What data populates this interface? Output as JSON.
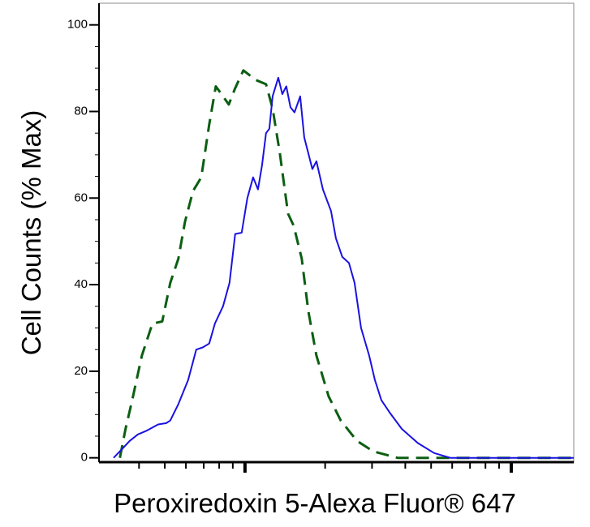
{
  "chart_data": {
    "type": "line",
    "x_label": "Peroxiredoxin 5-Alexa Fluor® 647",
    "y_label": "Cell Counts (% Max)",
    "x_scale": "log",
    "xlim": [
      28.3,
      1717
    ],
    "xticks": [
      100,
      1000
    ],
    "xminor_ticks": [
      40,
      50,
      60,
      70,
      80,
      90,
      200,
      300,
      400,
      500,
      600,
      700,
      800,
      900
    ],
    "x_tick_labels": false,
    "ylim": [
      -1,
      105
    ],
    "yticks": [
      0,
      20,
      40,
      60,
      80,
      100
    ],
    "yminor_ticks": [
      5,
      10,
      15,
      25,
      30,
      35,
      45,
      50,
      55,
      65,
      70,
      75,
      85,
      90,
      95
    ],
    "grid": false,
    "series": [
      {
        "color": "#1a12e0",
        "style": "solid",
        "x": [
          32.1,
          34.4,
          36.9,
          39.6,
          42.5,
          47.2,
          50.6,
          52.4,
          56.2,
          61.2,
          65.6,
          69.4,
          73.4,
          77.1,
          82.7,
          87.5,
          91.9,
          97.2,
          102.1,
          107.3,
          111.9,
          115.9,
          120,
          123.5,
          127,
          133.4,
          138.1,
          143,
          148.2,
          153.5,
          161.2,
          166.9,
          179.1,
          185.5,
          196.2,
          210.5,
          219.5,
          232.1,
          245.7,
          258,
          272.9,
          292.7,
          307.5,
          325.2,
          349,
          387.7,
          446,
          513.4,
          590.6,
          1717
        ],
        "values": [
          0,
          1.9,
          3.9,
          5.4,
          6.2,
          7.7,
          8,
          8.6,
          12.4,
          18,
          25,
          25.5,
          26.4,
          31,
          35,
          40.4,
          51.7,
          52,
          60,
          64.8,
          62,
          67.6,
          75,
          76,
          83.5,
          87.8,
          84,
          85.8,
          81,
          79.8,
          83.5,
          74,
          66.7,
          68.5,
          62,
          57,
          50.7,
          46.4,
          45,
          40.4,
          30,
          23.6,
          18,
          13.3,
          10.5,
          6.7,
          3.4,
          1.1,
          0,
          0
        ]
      },
      {
        "color": "#0b5e12",
        "style": "dashed",
        "x": [
          33.9,
          35.6,
          37.7,
          41,
          44.9,
          48.9,
          52.4,
          56.2,
          59.5,
          63.8,
          68.5,
          73.4,
          77.7,
          81.6,
          86.9,
          91.9,
          98.6,
          109.6,
          120,
          127,
          135.2,
          145.1,
          152.4,
          163.4,
          172.9,
          185.5,
          206.1,
          228.9,
          263.5,
          303.1,
          374.3,
          1717
        ],
        "values": [
          0,
          6.7,
          13.3,
          23.6,
          31,
          31.5,
          40.4,
          46,
          54.5,
          61.6,
          64.8,
          77,
          85.8,
          84,
          81.6,
          85.4,
          89.5,
          87.3,
          86.3,
          80.7,
          70.4,
          56.4,
          53.6,
          46,
          33.9,
          23.6,
          14.2,
          8.6,
          3.9,
          1.5,
          0,
          0
        ]
      }
    ]
  }
}
